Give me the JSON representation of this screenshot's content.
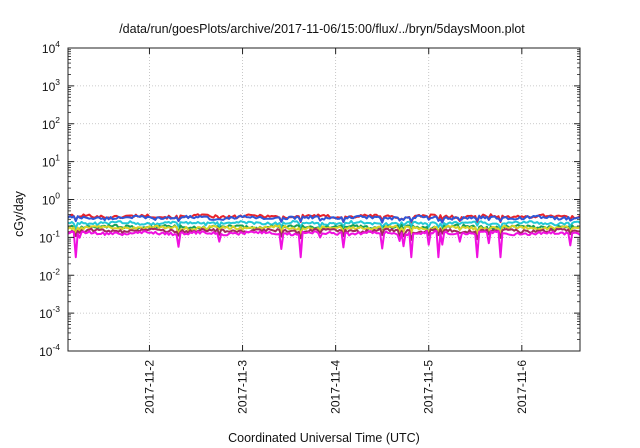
{
  "chart_data": {
    "type": "line",
    "title": "/data/run/goesPlots/archive/2017-11-06/15:00/flux/../bryn/5daysMoon.plot",
    "xlabel": "Coordinated Universal Time (UTC)",
    "ylabel": "cGy/day",
    "yscale": "log",
    "ylim": [
      0.0001,
      10000
    ],
    "y_ticks": [
      {
        "base": "10",
        "exp": "-4",
        "value": 0.0001
      },
      {
        "base": "10",
        "exp": "-3",
        "value": 0.001
      },
      {
        "base": "10",
        "exp": "-2",
        "value": 0.01
      },
      {
        "base": "10",
        "exp": "-1",
        "value": 0.1
      },
      {
        "base": "10",
        "exp": "0",
        "value": 1
      },
      {
        "base": "10",
        "exp": "1",
        "value": 10
      },
      {
        "base": "10",
        "exp": "2",
        "value": 100
      },
      {
        "base": "10",
        "exp": "3",
        "value": 1000
      },
      {
        "base": "10",
        "exp": "4",
        "value": 10000
      }
    ],
    "xlim": [
      "2017-11-01T03:00",
      "2017-11-06T15:00"
    ],
    "x_ticks": [
      "2017-11-2",
      "2017-11-3",
      "2017-11-4",
      "2017-11-5",
      "2017-11-6"
    ],
    "grid": true,
    "legend": "none",
    "sample_hours": 0.5,
    "series": [
      {
        "color": "#e8222a",
        "level": 0.36,
        "dip": 0.82
      },
      {
        "color": "#2f56d6",
        "level": 0.33,
        "dip": 0.86
      },
      {
        "color": "#22c8d6",
        "level": 0.24,
        "dip": 0.84
      },
      {
        "color": "#17a055",
        "level": 0.19,
        "dip": 0.8
      },
      {
        "color": "#d8d22a",
        "level": 0.18,
        "dip": 0.8
      },
      {
        "color": "#a02a60",
        "level": 0.15,
        "dip": 0.78
      },
      {
        "color": "#f010e0",
        "level": 0.13,
        "dip": 0.55
      }
    ]
  }
}
